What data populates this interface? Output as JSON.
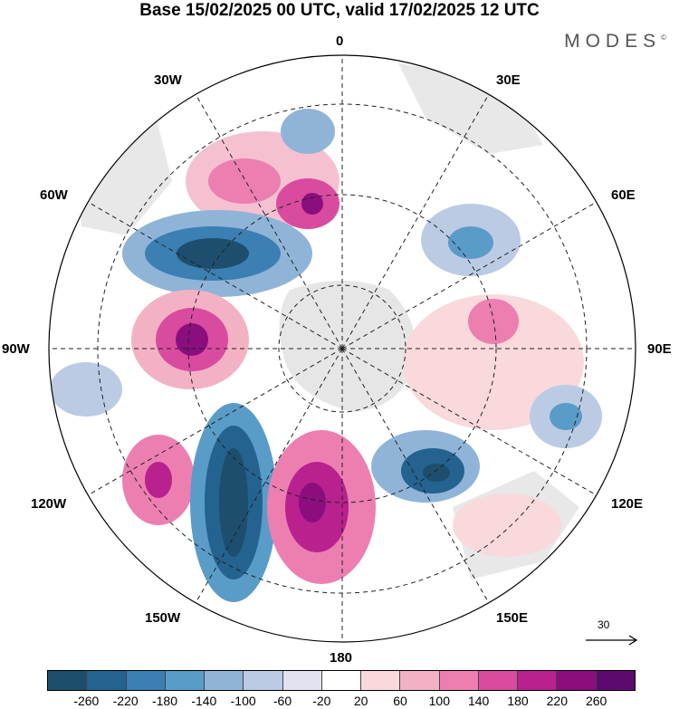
{
  "title": "Base 15/02/2025 00 UTC, valid 17/02/2025 12 UTC",
  "brand": "MODES",
  "brand_mark": "©",
  "longitude_labels": {
    "top": "0",
    "top_right": "30E",
    "right_upper": "60E",
    "right": "90E",
    "right_lower": "120E",
    "bottom_right": "150E",
    "bottom": "180",
    "bottom_left": "150W",
    "left_lower": "120W",
    "left": "90W",
    "left_upper": "60W",
    "top_left": "30W"
  },
  "reference_vector": {
    "label": "30"
  },
  "colorbar": {
    "colors": [
      "#1d4e6d",
      "#24628f",
      "#3b7fb3",
      "#5a9cc8",
      "#8fb4d8",
      "#bccbe4",
      "#e1e3f0",
      "#ffffff",
      "#f9d9dc",
      "#f3b2c4",
      "#ec7fb0",
      "#d94b9f",
      "#b8218e",
      "#8a0e7e",
      "#5c0a6e"
    ],
    "tick_labels": [
      "-260",
      "-220",
      "-180",
      "-140",
      "-100",
      "-60",
      "-20",
      "20",
      "60",
      "100",
      "140",
      "180",
      "220",
      "260"
    ]
  }
}
